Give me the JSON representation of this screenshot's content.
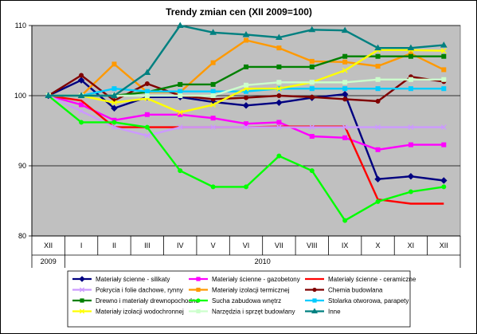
{
  "chart_data": {
    "type": "line",
    "title": "Trendy zmian cen (XII 2009=100)",
    "categories": [
      "XII",
      "I",
      "II",
      "III",
      "IV",
      "V",
      "VI",
      "VII",
      "VIII",
      "IX",
      "X",
      "XI",
      "XII"
    ],
    "years": [
      {
        "label": "2009",
        "from": 0,
        "to": 0
      },
      {
        "label": "2010",
        "from": 1,
        "to": 12
      }
    ],
    "ylim": [
      80,
      110
    ],
    "yticks": [
      80,
      90,
      100,
      110
    ],
    "grid": "horizontal",
    "plot_background": "#c0c0c0",
    "legend_position": "bottom",
    "series": [
      {
        "name": "Materiały ścienne - silikaty",
        "color": "#000080",
        "marker": "diamond",
        "values": [
          100,
          102.2,
          98.2,
          99.8,
          99.8,
          99.1,
          98.6,
          99.0,
          99.7,
          100.2,
          88.1,
          88.5,
          87.9
        ]
      },
      {
        "name": "Materiały ścienne - gazobetony",
        "color": "#ff00ff",
        "marker": "square",
        "values": [
          100,
          98.7,
          96.5,
          97.3,
          97.3,
          96.8,
          96.0,
          96.2,
          94.2,
          94.0,
          92.3,
          93.0,
          93.0
        ]
      },
      {
        "name": "Materiały ścienne - ceramiczne",
        "color": "#ff0000",
        "marker": "none",
        "values": [
          100,
          99.3,
          95.5,
          95.5,
          95.5,
          95.5,
          95.5,
          95.6,
          95.6,
          95.6,
          85.2,
          84.6,
          84.6
        ]
      },
      {
        "name": "Pokrycia i folie dachowe, rynny",
        "color": "#cc99ff",
        "marker": "x",
        "values": [
          100,
          97.8,
          95.5,
          94.3,
          95.5,
          95.5,
          95.5,
          95.5,
          95.5,
          95.5,
          95.5,
          95.5,
          95.5
        ]
      },
      {
        "name": "Materiały izolacji termicznej",
        "color": "#ff9900",
        "marker": "square",
        "values": [
          100,
          100.0,
          104.5,
          100.5,
          100.5,
          104.7,
          107.9,
          106.8,
          104.9,
          104.8,
          104.2,
          106.0,
          103.7
        ]
      },
      {
        "name": "Chemia budowlana",
        "color": "#800000",
        "marker": "circle",
        "values": [
          100,
          102.9,
          99.3,
          101.7,
          100.0,
          99.5,
          99.7,
          100.0,
          99.8,
          99.5,
          99.2,
          102.7,
          102.0
        ]
      },
      {
        "name": "Drewno i materiały drewnopochodne",
        "color": "#008000",
        "marker": "square",
        "values": [
          100,
          100.0,
          100.0,
          100.5,
          101.6,
          101.6,
          104.1,
          104.1,
          104.1,
          105.6,
          105.6,
          105.6,
          105.6
        ]
      },
      {
        "name": "Sucha zabudowa wnętrz",
        "color": "#00ff00",
        "marker": "circle",
        "values": [
          100,
          96.2,
          96.2,
          95.5,
          89.3,
          87.0,
          87.0,
          91.4,
          89.3,
          82.2,
          84.9,
          86.3,
          87.0
        ]
      },
      {
        "name": "Stolarka otworowa, parapety",
        "color": "#00ccff",
        "marker": "square",
        "values": [
          100,
          100.0,
          101.0,
          100.6,
          100.6,
          100.6,
          100.6,
          101.0,
          101.0,
          101.0,
          101.0,
          101.0,
          101.0
        ]
      },
      {
        "name": "Materiały izolacji wodochronnej",
        "color": "#ffff00",
        "marker": "x",
        "values": [
          100,
          100.0,
          99.0,
          99.6,
          97.6,
          98.7,
          101.0,
          101.0,
          101.9,
          103.6,
          106.5,
          106.5,
          106.4
        ]
      },
      {
        "name": "Narzędzia i sprzęt budowlany",
        "color": "#ccffcc",
        "marker": "square",
        "values": [
          100,
          100.0,
          100.0,
          100.0,
          100.0,
          100.0,
          101.5,
          101.9,
          101.9,
          101.9,
          102.3,
          102.3,
          102.3
        ]
      },
      {
        "name": "Inne",
        "color": "#008080",
        "marker": "triangle",
        "values": [
          100,
          100.0,
          100.0,
          103.3,
          110.0,
          109.0,
          108.7,
          108.3,
          109.4,
          109.3,
          106.8,
          106.8,
          107.2
        ]
      }
    ]
  }
}
